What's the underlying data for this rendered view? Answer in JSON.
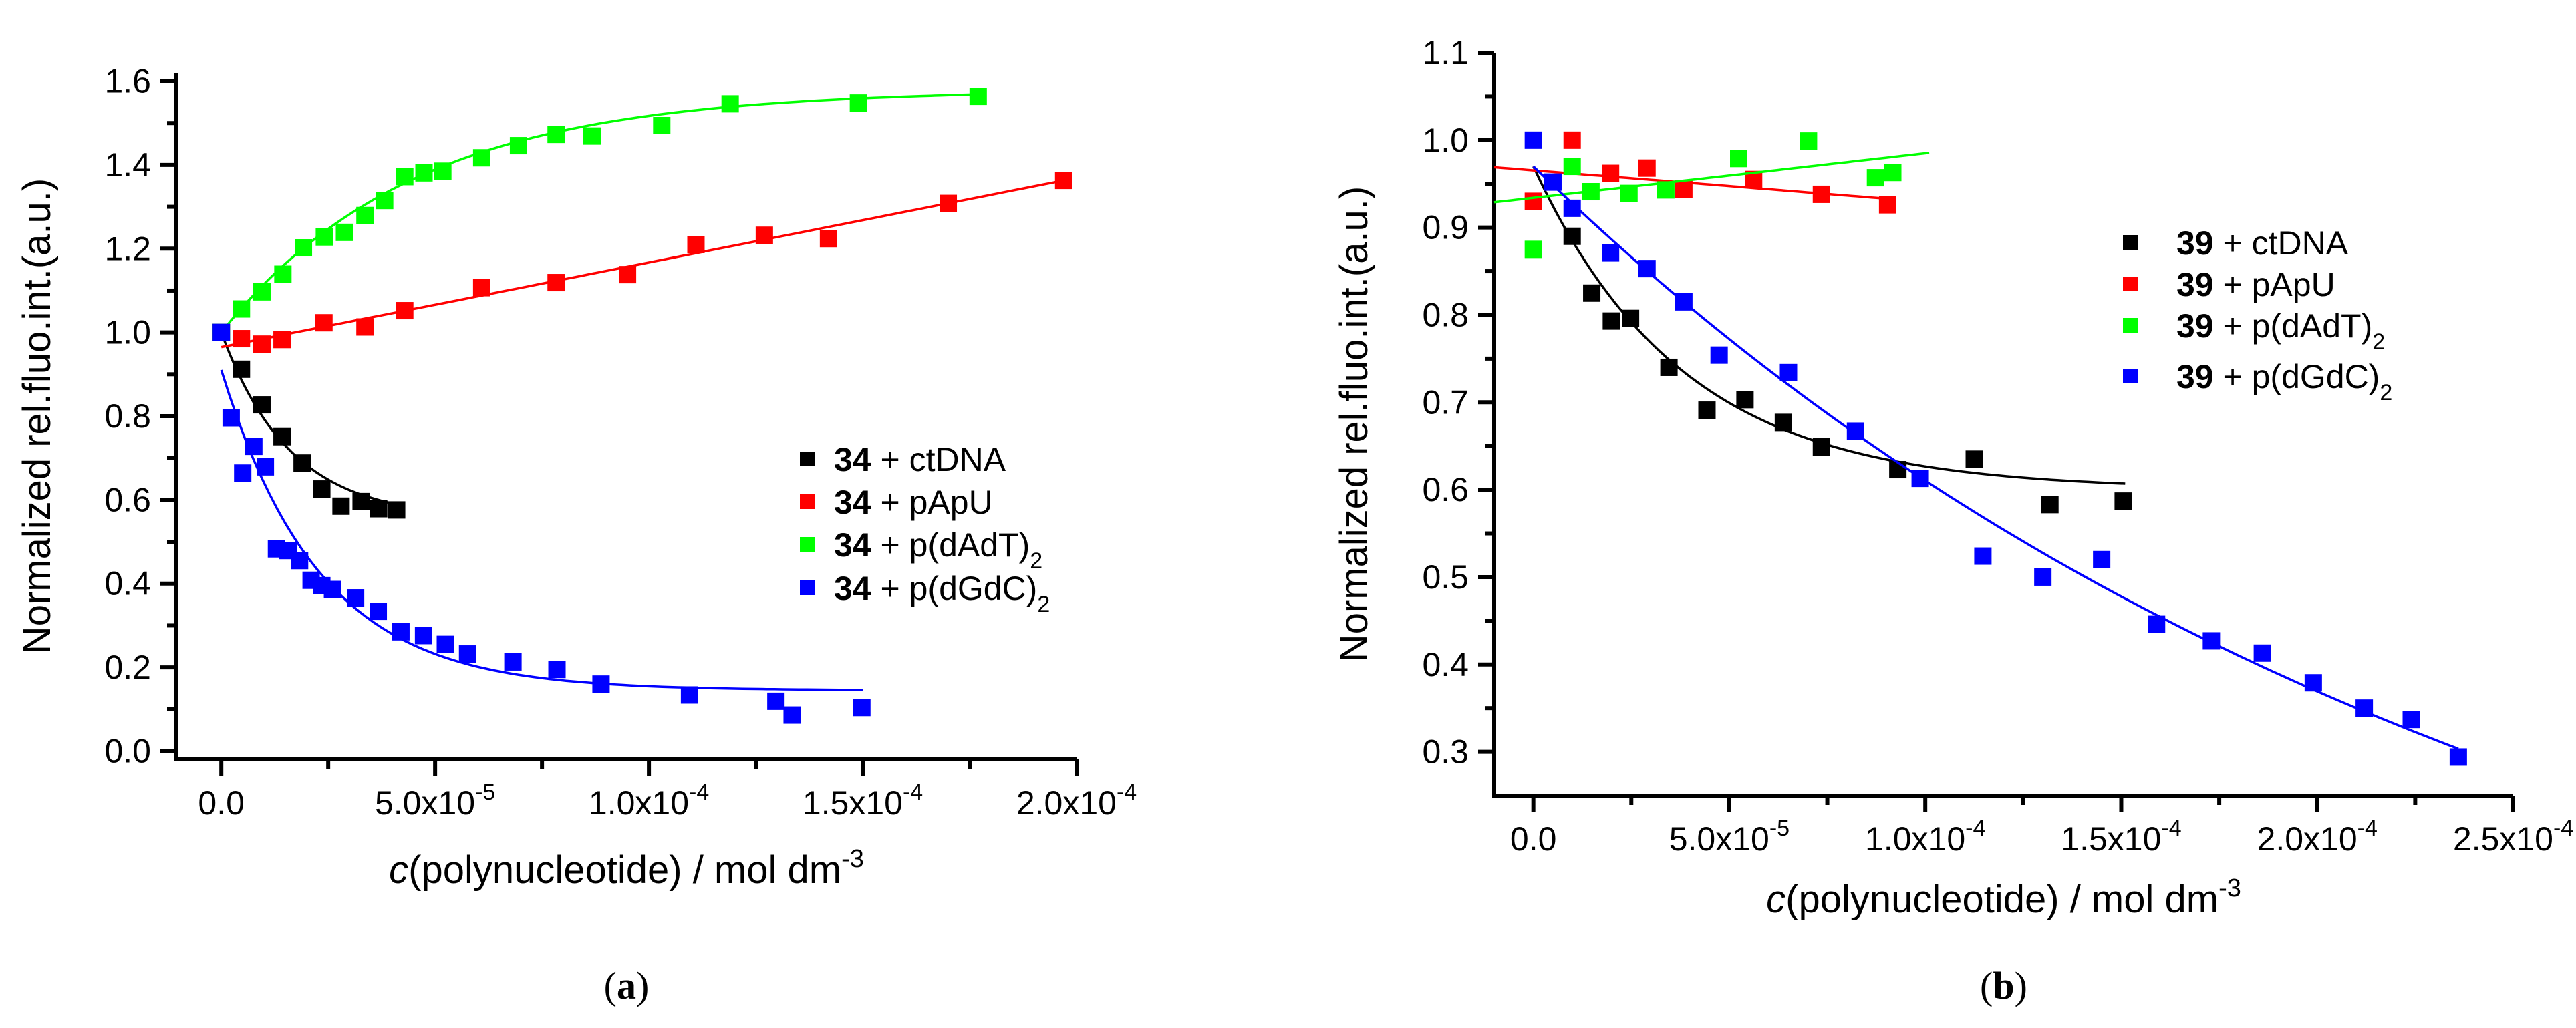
{
  "chart_data": [
    {
      "type": "scatter",
      "panel_label": "a",
      "caption_open": "(",
      "caption_close": ")",
      "x_unit_scale": 1e-05,
      "xlim": [
        -1.05,
        20
      ],
      "ylim": [
        -0.02,
        1.62
      ],
      "ylabel": "Normalized rel.fluo.int.(a.u.)",
      "xlabel": {
        "italic": "c",
        "text": "(polynucleotide) / mol dm",
        "sup": "-3"
      },
      "xticks": [
        {
          "value": 0,
          "base": "0.0",
          "exp": ""
        },
        {
          "value": 5,
          "base": "5.0x10",
          "exp": "-5"
        },
        {
          "value": 10,
          "base": "1.0x10",
          "exp": "-4"
        },
        {
          "value": 15,
          "base": "1.5x10",
          "exp": "-4"
        },
        {
          "value": 20,
          "base": "2.0x10",
          "exp": "-4"
        }
      ],
      "yticks": [
        {
          "value": 0,
          "label": "0.0"
        },
        {
          "value": 0.2,
          "label": "0.2"
        },
        {
          "value": 0.4,
          "label": "0.4"
        },
        {
          "value": 0.6,
          "label": "0.6"
        },
        {
          "value": 0.8,
          "label": "0.8"
        },
        {
          "value": 1.0,
          "label": "1.0"
        },
        {
          "value": 1.2,
          "label": "1.2"
        },
        {
          "value": 1.4,
          "label": "1.4"
        },
        {
          "value": 1.6,
          "label": "1.6"
        }
      ],
      "legend_position": "center-right",
      "series": [
        {
          "name": "ctDNA",
          "legend": {
            "num": "34",
            "text": " + ctDNA",
            "sub": ""
          },
          "color": "#000000",
          "x": [
            0,
            0.47,
            0.95,
            1.42,
            1.89,
            2.35,
            2.8,
            3.27,
            3.68,
            4.1
          ],
          "y": [
            1.0,
            0.912,
            0.827,
            0.751,
            0.688,
            0.626,
            0.585,
            0.596,
            0.579,
            0.576
          ],
          "fit": {
            "kind": "exp",
            "y0": 0.555,
            "A": 0.445,
            "t": 1.6,
            "xmin": 0,
            "xmax": 4.2
          }
        },
        {
          "name": "pApU",
          "legend": {
            "num": "34",
            "text": " + pApU",
            "sub": ""
          },
          "color": "#ff0000",
          "x": [
            0,
            0.47,
            0.95,
            1.42,
            2.4,
            3.36,
            4.29,
            6.09,
            7.83,
            9.5,
            11.1,
            12.7,
            14.2,
            17.0,
            19.7
          ],
          "y": [
            1.0,
            0.985,
            0.972,
            0.983,
            1.023,
            1.013,
            1.052,
            1.107,
            1.119,
            1.138,
            1.21,
            1.232,
            1.224,
            1.308,
            1.363
          ],
          "fit": {
            "kind": "linear",
            "b": 0.965,
            "m": 0.0202,
            "xmin": 0,
            "xmax": 19.7
          }
        },
        {
          "name": "p(dAdT)2",
          "legend": {
            "num": "34",
            "text": " + p(dAdT)",
            "sub": "2"
          },
          "color": "#00ff00",
          "x": [
            0,
            0.47,
            0.95,
            1.44,
            1.92,
            2.41,
            2.88,
            3.36,
            3.82,
            4.29,
            4.74,
            5.18,
            6.09,
            6.95,
            7.83,
            8.67,
            10.3,
            11.9,
            14.9,
            17.7
          ],
          "y": [
            1.0,
            1.056,
            1.097,
            1.139,
            1.202,
            1.228,
            1.239,
            1.279,
            1.315,
            1.372,
            1.381,
            1.385,
            1.417,
            1.446,
            1.473,
            1.469,
            1.494,
            1.546,
            1.548,
            1.564
          ],
          "fit": {
            "kind": "exp",
            "y0": 1.58,
            "A": -0.58,
            "t": 4.5,
            "xmin": 0,
            "xmax": 17.7
          }
        },
        {
          "name": "p(dGdC)2",
          "legend": {
            "num": "34",
            "text": " + p(dGdC)",
            "sub": "2"
          },
          "color": "#0000ff",
          "x": [
            0,
            0.23,
            0.5,
            0.76,
            1.03,
            1.29,
            1.56,
            1.83,
            2.1,
            2.35,
            2.6,
            3.14,
            3.67,
            4.2,
            4.73,
            5.24,
            5.76,
            6.82,
            7.85,
            8.88,
            10.95,
            12.97,
            13.35,
            14.98
          ],
          "y": [
            1.0,
            0.796,
            0.664,
            0.728,
            0.679,
            0.483,
            0.479,
            0.455,
            0.408,
            0.395,
            0.386,
            0.366,
            0.334,
            0.285,
            0.276,
            0.255,
            0.232,
            0.213,
            0.195,
            0.16,
            0.134,
            0.119,
            0.086,
            0.104
          ],
          "fit": {
            "kind": "exp",
            "y0": 0.145,
            "A": 0.765,
            "t": 2.3,
            "xmin": 0,
            "xmax": 15
          }
        }
      ]
    },
    {
      "type": "scatter",
      "panel_label": "b",
      "caption_open": "(",
      "caption_close": ")",
      "x_unit_scale": 1e-05,
      "xlim": [
        -1.0,
        25
      ],
      "ylim": [
        0.25,
        1.1
      ],
      "ylabel": "Normalized rel.fluo.int.(a.u.)",
      "xlabel": {
        "italic": "c",
        "text": "(polynucleotide) / mol dm",
        "sup": "-3"
      },
      "xticks": [
        {
          "value": 0,
          "base": "0.0",
          "exp": ""
        },
        {
          "value": 5,
          "base": "5.0x10",
          "exp": "-5"
        },
        {
          "value": 10,
          "base": "1.0x10",
          "exp": "-4"
        },
        {
          "value": 15,
          "base": "1.5x10",
          "exp": "-4"
        },
        {
          "value": 20,
          "base": "2.0x10",
          "exp": "-4"
        },
        {
          "value": 25,
          "base": "2.5x10",
          "exp": "-4"
        }
      ],
      "yticks": [
        {
          "value": 0.3,
          "label": "0.3"
        },
        {
          "value": 0.4,
          "label": "0.4"
        },
        {
          "value": 0.5,
          "label": "0.5"
        },
        {
          "value": 0.6,
          "label": "0.6"
        },
        {
          "value": 0.7,
          "label": "0.7"
        },
        {
          "value": 0.8,
          "label": "0.8"
        },
        {
          "value": 0.9,
          "label": "0.9"
        },
        {
          "value": 1.0,
          "label": "1.0"
        },
        {
          "value": 1.1,
          "label": "1.1"
        }
      ],
      "legend_position": "top-right",
      "series": [
        {
          "name": "ctDNA",
          "legend": {
            "num": "39",
            "text": " + ctDNA",
            "sub": ""
          },
          "color": "#000000",
          "x": [
            0.99,
            1.49,
            1.99,
            2.48,
            3.46,
            4.43,
            5.4,
            6.38,
            7.35,
            9.3,
            11.25,
            13.18,
            15.05
          ],
          "y": [
            0.89,
            0.825,
            0.793,
            0.796,
            0.74,
            0.691,
            0.703,
            0.677,
            0.649,
            0.623,
            0.635,
            0.583,
            0.587
          ],
          "fit": {
            "kind": "exp",
            "y0": 0.6,
            "A": 0.37,
            "t": 3.8,
            "xmin": 0,
            "xmax": 15.1
          }
        },
        {
          "name": "pApU",
          "legend": {
            "num": "39",
            "text": " + pApU",
            "sub": ""
          },
          "color": "#ff0000",
          "x": [
            0,
            0.99,
            1.97,
            2.9,
            3.84,
            5.62,
            7.35,
            9.04
          ],
          "y": [
            0.93,
            1.0,
            0.962,
            0.968,
            0.944,
            0.955,
            0.938,
            0.926
          ],
          "fit": {
            "kind": "linear",
            "b": 0.9654,
            "m": -0.0036,
            "xmin": -1.0,
            "xmax": 9.0
          }
        },
        {
          "name": "p(dAdT)2",
          "legend": {
            "num": "39",
            "text": " + p(dAdT)",
            "sub": "2"
          },
          "color": "#00ff00",
          "x": [
            0,
            0.99,
            1.47,
            2.44,
            3.38,
            5.24,
            7.02,
            8.73,
            9.17
          ],
          "y": [
            0.875,
            0.97,
            0.941,
            0.939,
            0.943,
            0.979,
            0.999,
            0.957,
            0.963
          ],
          "fit": {
            "kind": "linear",
            "b": 0.934,
            "m": 0.0051,
            "xmin": -1.0,
            "xmax": 10.1
          }
        },
        {
          "name": "p(dGdC)2",
          "legend": {
            "num": "39",
            "text": " + p(dGdC)",
            "sub": "2"
          },
          "color": "#0000ff",
          "x": [
            0,
            0.5,
            0.99,
            1.97,
            2.9,
            3.84,
            4.74,
            6.51,
            8.22,
            9.87,
            11.47,
            13.0,
            14.5,
            15.9,
            17.3,
            18.6,
            19.9,
            21.2,
            22.4,
            23.6
          ],
          "y": [
            1.0,
            0.952,
            0.922,
            0.871,
            0.853,
            0.815,
            0.754,
            0.734,
            0.667,
            0.613,
            0.524,
            0.5,
            0.52,
            0.446,
            0.427,
            0.413,
            0.379,
            0.35,
            0.337,
            0.294
          ],
          "fit": {
            "kind": "exp",
            "y0": -0.121,
            "A": 1.091,
            "t": 25,
            "xmin": 0,
            "xmax": 23.6
          }
        }
      ]
    }
  ]
}
